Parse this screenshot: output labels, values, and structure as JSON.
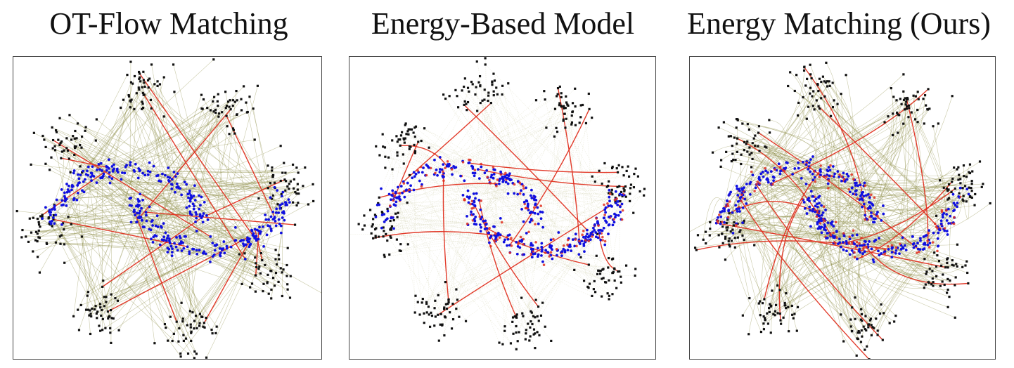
{
  "figure": {
    "panels": [
      {
        "key": "ot",
        "title": "OT-Flow Matching"
      },
      {
        "key": "ebm",
        "title": "Energy-Based Model"
      },
      {
        "key": "em",
        "title": "Energy Matching (Ours)"
      }
    ]
  },
  "chart_data": [
    {
      "type": "scatter",
      "title": "OT-Flow Matching",
      "xlabel": "",
      "ylabel": "",
      "axis_ticks_shown": false,
      "grid": false,
      "source": {
        "name": "Gaussian clusters",
        "color": "#111111",
        "clusters": 8
      },
      "target": {
        "name": "two moons",
        "color": "#1010e0"
      },
      "trajectories": {
        "color": "#8a8a40",
        "highlight_color": "#e03020",
        "style": "straight"
      }
    },
    {
      "type": "scatter",
      "title": "Energy-Based Model",
      "xlabel": "",
      "ylabel": "",
      "axis_ticks_shown": false,
      "grid": false,
      "source": {
        "name": "Gaussian clusters",
        "color": "#111111",
        "clusters": 8
      },
      "target": {
        "name": "two moons",
        "color": "#1010e0"
      },
      "trajectories": {
        "color": "#c8c8a0",
        "highlight_color": "#e03020",
        "style": "noisy"
      }
    },
    {
      "type": "scatter",
      "title": "Energy Matching (Ours)",
      "xlabel": "",
      "ylabel": "",
      "axis_ticks_shown": false,
      "grid": false,
      "source": {
        "name": "Gaussian clusters",
        "color": "#111111",
        "clusters": 8
      },
      "target": {
        "name": "two moons",
        "color": "#1010e0"
      },
      "trajectories": {
        "color": "#8a8a40",
        "highlight_color": "#e03020",
        "style": "curved"
      }
    }
  ]
}
